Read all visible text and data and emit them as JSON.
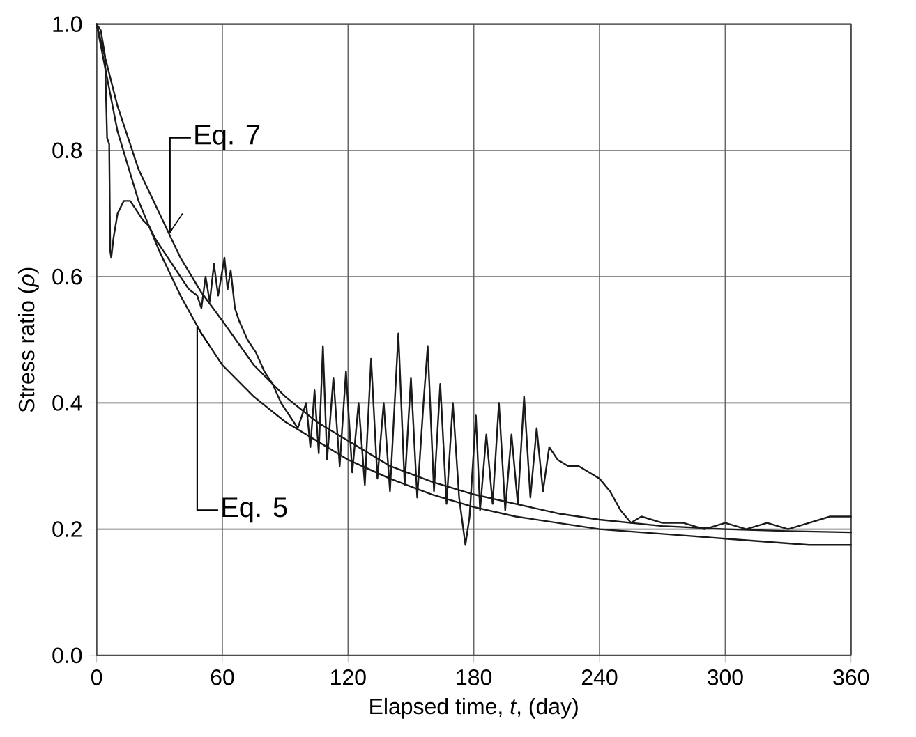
{
  "chart_data": {
    "type": "line",
    "xlabel": "Elapsed time, *t*, (day)",
    "ylabel": "Stress ratio (*ρ*)",
    "xlim": [
      0,
      360
    ],
    "ylim": [
      0,
      1
    ],
    "xticks": [
      0,
      60,
      120,
      180,
      240,
      300,
      360
    ],
    "yticks": [
      {
        "value": 0,
        "label": "0.0"
      },
      {
        "value": 0.2,
        "label": "0.2"
      },
      {
        "value": 0.4,
        "label": "0.4"
      },
      {
        "value": 0.6,
        "label": "0.6"
      },
      {
        "value": 0.8,
        "label": "0.8"
      },
      {
        "value": 1,
        "label": "1.0"
      }
    ],
    "grid": true,
    "marker": "none",
    "line_style": "solid",
    "legend": false,
    "series": [
      {
        "color": "#1a1a1a",
        "x": [
          0,
          2,
          4,
          5,
          6,
          6.5,
          7,
          8,
          10,
          13,
          16,
          18,
          20,
          22,
          25,
          28,
          32,
          36,
          40,
          44,
          48,
          50,
          52,
          54,
          56,
          58,
          61,
          62.5,
          64,
          66,
          68,
          72,
          76,
          80,
          84,
          88,
          92,
          96,
          100,
          102,
          104,
          106,
          108,
          110,
          113,
          116,
          119,
          122,
          125,
          128,
          131,
          134,
          137,
          140,
          144,
          147,
          150,
          153,
          156,
          158,
          161,
          164,
          167,
          170,
          173,
          176,
          178,
          181,
          183,
          186,
          189,
          192,
          195,
          198,
          201,
          204,
          207,
          210,
          213,
          216,
          220,
          225,
          230,
          235,
          240,
          245,
          250,
          255,
          260,
          270,
          280,
          290,
          300,
          310,
          320,
          330,
          340,
          350,
          360
        ],
        "values": [
          1.0,
          0.99,
          0.95,
          0.82,
          0.81,
          0.64,
          0.63,
          0.66,
          0.7,
          0.72,
          0.72,
          0.71,
          0.7,
          0.69,
          0.68,
          0.66,
          0.64,
          0.62,
          0.6,
          0.58,
          0.57,
          0.55,
          0.6,
          0.56,
          0.62,
          0.57,
          0.63,
          0.58,
          0.61,
          0.55,
          0.53,
          0.5,
          0.48,
          0.45,
          0.43,
          0.4,
          0.38,
          0.36,
          0.4,
          0.33,
          0.42,
          0.32,
          0.49,
          0.31,
          0.44,
          0.3,
          0.45,
          0.29,
          0.4,
          0.27,
          0.47,
          0.28,
          0.4,
          0.26,
          0.51,
          0.27,
          0.44,
          0.25,
          0.4,
          0.49,
          0.26,
          0.43,
          0.24,
          0.4,
          0.25,
          0.175,
          0.22,
          0.38,
          0.23,
          0.35,
          0.24,
          0.4,
          0.23,
          0.35,
          0.24,
          0.41,
          0.25,
          0.36,
          0.26,
          0.33,
          0.31,
          0.3,
          0.3,
          0.29,
          0.28,
          0.26,
          0.23,
          0.21,
          0.22,
          0.21,
          0.21,
          0.2,
          0.21,
          0.2,
          0.21,
          0.2,
          0.21,
          0.22,
          0.22
        ]
      },
      {
        "color": "#1a1a1a",
        "x": [
          0,
          10,
          20,
          30,
          40,
          50,
          60,
          75,
          90,
          105,
          120,
          140,
          160,
          180,
          200,
          220,
          240,
          270,
          300,
          330,
          360
        ],
        "values": [
          1.0,
          0.87,
          0.77,
          0.7,
          0.63,
          0.575,
          0.53,
          0.46,
          0.41,
          0.37,
          0.34,
          0.3,
          0.275,
          0.255,
          0.24,
          0.225,
          0.215,
          0.205,
          0.2,
          0.197,
          0.195
        ]
      },
      {
        "color": "#1a1a1a",
        "x": [
          0,
          10,
          20,
          30,
          40,
          50,
          60,
          75,
          90,
          105,
          120,
          140,
          160,
          180,
          200,
          220,
          240,
          260,
          280,
          300,
          320,
          340,
          360
        ],
        "values": [
          1.0,
          0.83,
          0.72,
          0.64,
          0.57,
          0.51,
          0.46,
          0.41,
          0.37,
          0.34,
          0.31,
          0.28,
          0.255,
          0.235,
          0.22,
          0.21,
          0.2,
          0.195,
          0.19,
          0.185,
          0.18,
          0.175,
          0.175
        ]
      }
    ],
    "annotations": [
      {
        "text": "Eq. 7",
        "x": 35,
        "y": 0.67
      },
      {
        "text": "Eq. 5",
        "x": 48,
        "y": 0.52
      }
    ]
  }
}
